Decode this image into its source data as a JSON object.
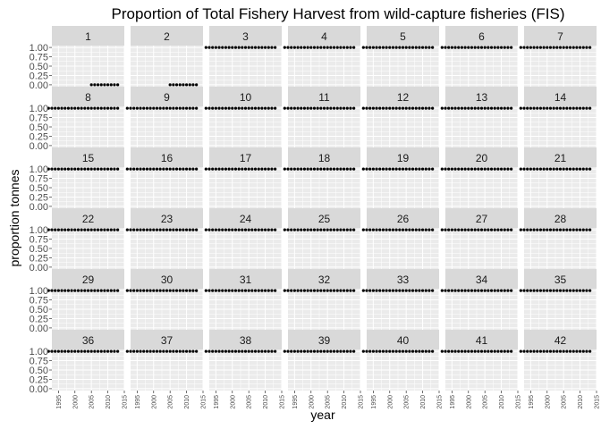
{
  "chart_data": {
    "type": "scatter",
    "title": "Proportion of Total Fishery Harvest from wild-capture fisheries (FIS)",
    "xlabel": "year",
    "ylabel": "proportion tonnes",
    "xlim": [
      1993,
      2015
    ],
    "ylim": [
      -0.05,
      1.05
    ],
    "x_ticks": [
      "1995",
      "2000",
      "2005",
      "2010",
      "2015"
    ],
    "y_ticks": [
      "0.00",
      "0.25",
      "0.50",
      "0.75",
      "1.00"
    ],
    "grid": true,
    "facets": {
      "rows": 6,
      "cols": 7,
      "labels": [
        "1",
        "2",
        "3",
        "4",
        "5",
        "6",
        "7",
        "8",
        "9",
        "10",
        "11",
        "12",
        "13",
        "14",
        "15",
        "16",
        "17",
        "18",
        "19",
        "20",
        "21",
        "22",
        "23",
        "24",
        "25",
        "26",
        "27",
        "28",
        "29",
        "30",
        "31",
        "32",
        "33",
        "34",
        "35",
        "36",
        "37",
        "38",
        "39",
        "40",
        "41",
        "42"
      ]
    },
    "years": [
      1992,
      1993,
      1994,
      1995,
      1996,
      1997,
      1998,
      1999,
      2000,
      2001,
      2002,
      2003,
      2004,
      2005,
      2006,
      2007,
      2008,
      2009,
      2010,
      2011,
      2012,
      2013
    ],
    "series": [
      {
        "panel": "1",
        "x_start": 2005,
        "x_end": 2013,
        "value": 0.0
      },
      {
        "panel": "2",
        "x_start": 2005,
        "x_end": 2013,
        "value": 0.0
      },
      {
        "panel": "3",
        "x_start": 1992,
        "x_end": 2013,
        "value": 1.0
      },
      {
        "panel": "4",
        "x_start": 1992,
        "x_end": 2013,
        "value": 1.0
      },
      {
        "panel": "5",
        "x_start": 1992,
        "x_end": 2013,
        "value": 1.0
      },
      {
        "panel": "6",
        "x_start": 1992,
        "x_end": 2013,
        "value": 1.0
      },
      {
        "panel": "7",
        "x_start": 1992,
        "x_end": 2013,
        "value": 1.0
      },
      {
        "panel": "8",
        "x_start": 1992,
        "x_end": 2013,
        "value": 1.0
      },
      {
        "panel": "9",
        "x_start": 1992,
        "x_end": 2013,
        "value": 1.0
      },
      {
        "panel": "10",
        "x_start": 1992,
        "x_end": 2013,
        "value": 1.0
      },
      {
        "panel": "11",
        "x_start": 1992,
        "x_end": 2013,
        "value": 1.0
      },
      {
        "panel": "12",
        "x_start": 1992,
        "x_end": 2013,
        "value": 1.0
      },
      {
        "panel": "13",
        "x_start": 1992,
        "x_end": 2013,
        "value": 1.0
      },
      {
        "panel": "14",
        "x_start": 1992,
        "x_end": 2013,
        "value": 1.0
      },
      {
        "panel": "15",
        "x_start": 1992,
        "x_end": 2013,
        "value": 1.0
      },
      {
        "panel": "16",
        "x_start": 1992,
        "x_end": 2013,
        "value": 1.0
      },
      {
        "panel": "17",
        "x_start": 1992,
        "x_end": 2013,
        "value": 1.0
      },
      {
        "panel": "18",
        "x_start": 1992,
        "x_end": 2013,
        "value": 1.0
      },
      {
        "panel": "19",
        "x_start": 1992,
        "x_end": 2013,
        "value": 1.0
      },
      {
        "panel": "20",
        "x_start": 1992,
        "x_end": 2013,
        "value": 1.0
      },
      {
        "panel": "21",
        "x_start": 1992,
        "x_end": 2013,
        "value": 1.0
      },
      {
        "panel": "22",
        "x_start": 1992,
        "x_end": 2013,
        "value": 1.0
      },
      {
        "panel": "23",
        "x_start": 1992,
        "x_end": 2013,
        "value": 1.0
      },
      {
        "panel": "24",
        "x_start": 1992,
        "x_end": 2013,
        "value": 1.0
      },
      {
        "panel": "25",
        "x_start": 1992,
        "x_end": 2013,
        "value": 1.0
      },
      {
        "panel": "26",
        "x_start": 1992,
        "x_end": 2013,
        "value": 1.0
      },
      {
        "panel": "27",
        "x_start": 1992,
        "x_end": 2013,
        "value": 1.0
      },
      {
        "panel": "28",
        "x_start": 1992,
        "x_end": 2013,
        "value": 1.0
      },
      {
        "panel": "29",
        "x_start": 1992,
        "x_end": 2013,
        "value": 1.0
      },
      {
        "panel": "30",
        "x_start": 1992,
        "x_end": 2013,
        "value": 1.0
      },
      {
        "panel": "31",
        "x_start": 1992,
        "x_end": 2013,
        "value": 1.0
      },
      {
        "panel": "32",
        "x_start": 1992,
        "x_end": 2013,
        "value": 1.0
      },
      {
        "panel": "33",
        "x_start": 1992,
        "x_end": 2013,
        "value": 1.0
      },
      {
        "panel": "34",
        "x_start": 1992,
        "x_end": 2013,
        "value": 1.0
      },
      {
        "panel": "35",
        "x_start": 1992,
        "x_end": 2013,
        "value": 1.0
      },
      {
        "panel": "36",
        "x_start": 1992,
        "x_end": 2013,
        "value": 1.0
      },
      {
        "panel": "37",
        "x_start": 1992,
        "x_end": 2013,
        "value": 1.0
      },
      {
        "panel": "38",
        "x_start": 1992,
        "x_end": 2013,
        "value": 1.0
      },
      {
        "panel": "39",
        "x_start": 1992,
        "x_end": 2013,
        "value": 1.0
      },
      {
        "panel": "40",
        "x_start": 1992,
        "x_end": 2013,
        "value": 1.0
      },
      {
        "panel": "41",
        "x_start": 1992,
        "x_end": 2013,
        "value": 1.0
      },
      {
        "panel": "42",
        "x_start": 1992,
        "x_end": 2013,
        "value": 1.0
      }
    ],
    "colors": {
      "panel_bg": "#EBEBEB",
      "strip_bg": "#D9D9D9",
      "grid": "#FFFFFF",
      "point": "#000000",
      "axis_text": "#4D4D4D",
      "text": "#000000"
    }
  }
}
